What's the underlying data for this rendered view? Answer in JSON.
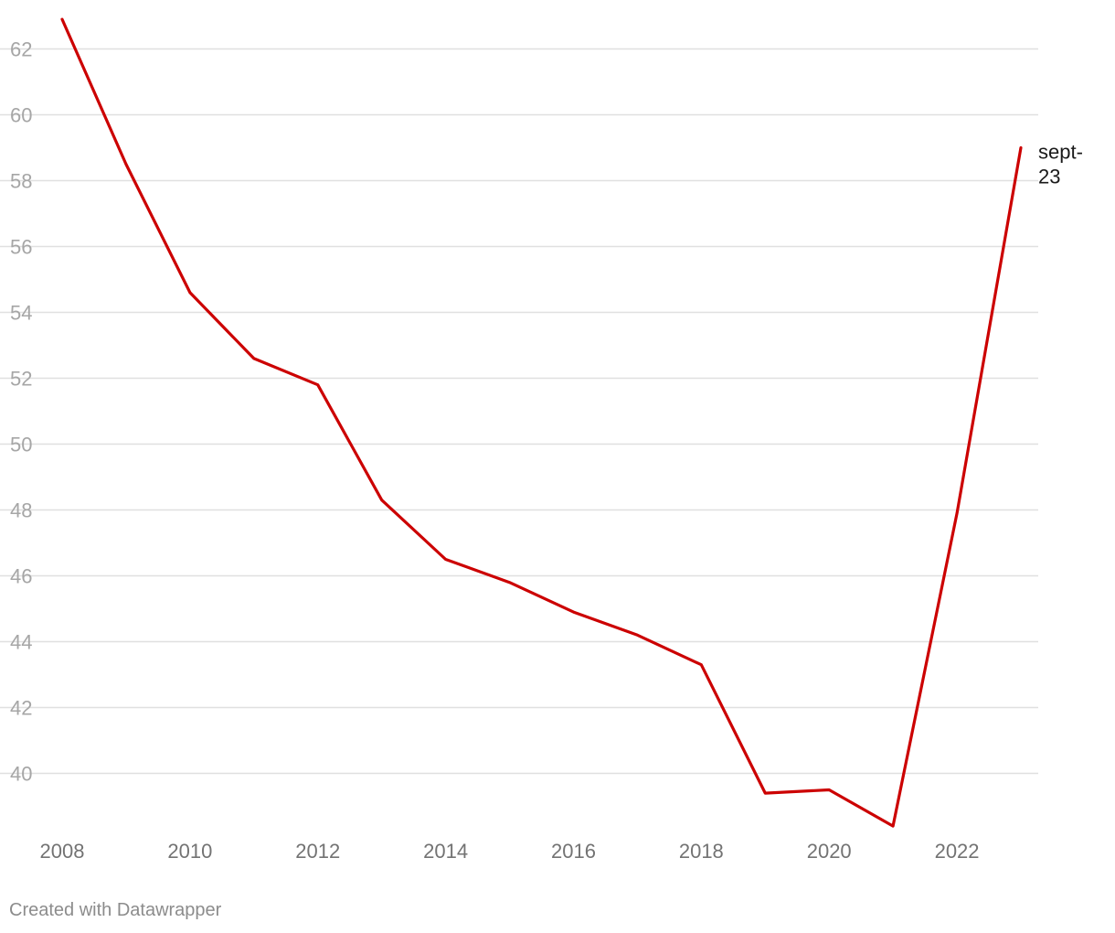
{
  "chart_data": {
    "type": "line",
    "title": "",
    "xlabel": "",
    "ylabel": "",
    "x": [
      2008,
      2009,
      2010,
      2011,
      2012,
      2013,
      2014,
      2015,
      2016,
      2017,
      2018,
      2019,
      2020,
      2021,
      2022,
      2023
    ],
    "series": [
      {
        "values": [
          62.9,
          58.5,
          54.6,
          52.6,
          51.8,
          48.3,
          46.5,
          45.8,
          44.9,
          44.2,
          43.3,
          39.4,
          39.5,
          38.4,
          47.9,
          59.0
        ]
      }
    ],
    "end_label": [
      "sept-",
      "23"
    ],
    "xticks": [
      "2008",
      "2010",
      "2012",
      "2014",
      "2016",
      "2018",
      "2020",
      "2022"
    ],
    "yticks": [
      "40",
      "42",
      "44",
      "46",
      "48",
      "50",
      "52",
      "54",
      "56",
      "58",
      "60",
      "62"
    ],
    "xlim": [
      2008,
      2023
    ],
    "ylim": [
      38.4,
      62.9
    ],
    "grid": true,
    "legend": "none",
    "colors": {
      "line": "#cc0000",
      "grid": "#e0e0e0",
      "tick_label_y": "#a6a6a6",
      "tick_label_x": "#737373",
      "end_label": "#1a1a1a"
    }
  },
  "footer": {
    "credit": "Created with Datawrapper"
  }
}
